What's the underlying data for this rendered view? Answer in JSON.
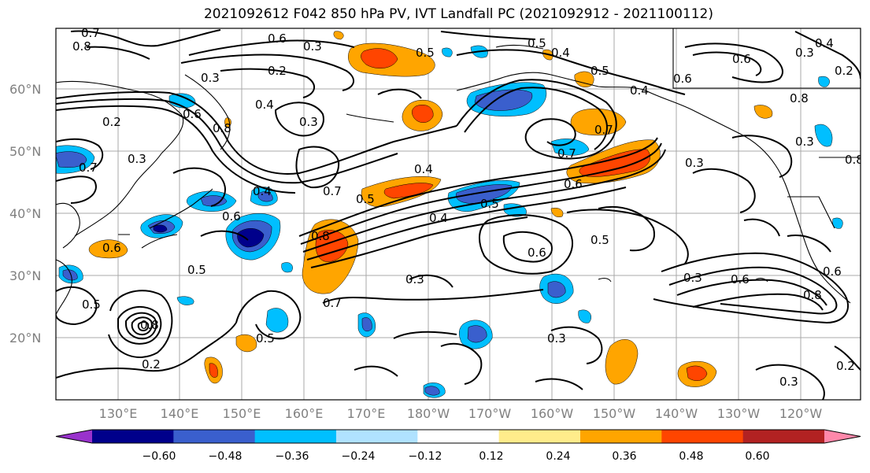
{
  "title": "2021092612 F042 850 hPa PV, IVT Landfall PC (2021092912 - 2021100112)",
  "lat_labels": [
    "60°N",
    "50°N",
    "40°N",
    "30°N",
    "20°N"
  ],
  "lon_labels": [
    "130°E",
    "140°E",
    "150°E",
    "160°E",
    "170°E",
    "180°W",
    "170°W",
    "160°W",
    "150°W",
    "140°W",
    "130°W",
    "120°W"
  ],
  "colorbar": {
    "colors": [
      "#9932cc",
      "#00008b",
      "#3a5fcd",
      "#00bfff",
      "#b0e2ff",
      "#ffffff",
      "#ffec8b",
      "#ffa500",
      "#ff4500",
      "#b22222",
      "#ff88aa"
    ],
    "tick_labels": [
      "−0.60",
      "−0.48",
      "−0.36",
      "−0.24",
      "−0.12",
      "0.12",
      "0.24",
      "0.36",
      "0.48",
      "0.60"
    ]
  },
  "contour_labels": [
    "0.7",
    "0.8",
    "0.6",
    "0.2",
    "0.3",
    "0.5",
    "0.4",
    "0.3",
    "0.2",
    "0.6",
    "0.8",
    "0.3",
    "0.4",
    "0.6",
    "0.7",
    "0.5",
    "0.5",
    "0.4",
    "0.5",
    "0.6",
    "0.3",
    "0.3",
    "0.3",
    "0.4",
    "0.8",
    "0.5",
    "0.5",
    "0.2",
    "0.3",
    "0.4",
    "0.6",
    "0.6",
    "0.6",
    "0.7",
    "0.7",
    "0.5",
    "0.3",
    "0.3",
    "0.2",
    "0.6",
    "0.8",
    "0.4",
    "0.2",
    "0.3",
    "0.8",
    "0.6",
    "0.5",
    "0.4",
    "0.7",
    "0.8",
    "0.3",
    "0.5",
    "0.6",
    "0.7",
    "0.8"
  ]
}
